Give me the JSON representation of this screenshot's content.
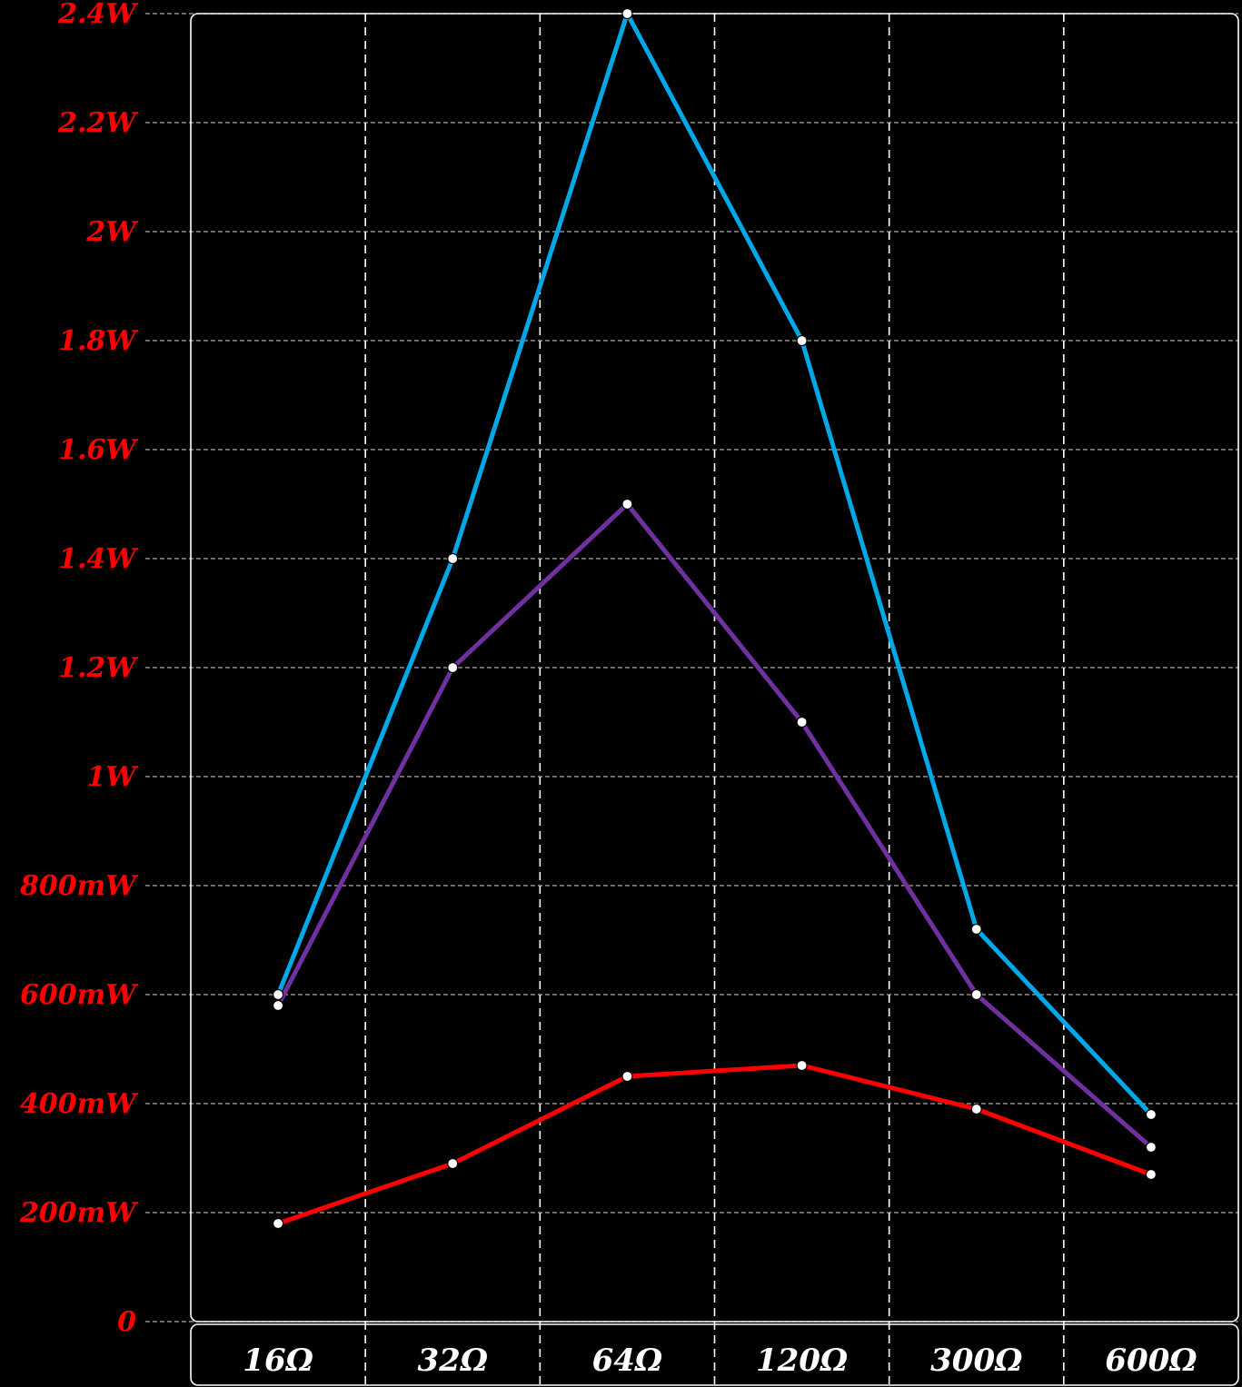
{
  "chart_data": {
    "type": "line",
    "categories": [
      "16Ω",
      "32Ω",
      "64Ω",
      "120Ω",
      "300Ω",
      "600Ω"
    ],
    "y_tick_labels": [
      "0",
      "200mW",
      "400mW",
      "600mW",
      "800mW",
      "1W",
      "1.2W",
      "1.4W",
      "1.6W",
      "1.8W",
      "2W",
      "2.2W",
      "2.4W"
    ],
    "ylim": [
      0,
      2.4
    ],
    "y_unit": "W",
    "grid": true,
    "series": [
      {
        "color": "#00a8e8",
        "values": [
          0.6,
          1.4,
          2.4,
          1.8,
          0.72,
          0.38
        ]
      },
      {
        "color": "#7030a0",
        "values": [
          0.58,
          1.2,
          1.5,
          1.1,
          0.6,
          0.32
        ]
      },
      {
        "color": "#ff0000",
        "values": [
          0.18,
          0.29,
          0.45,
          0.47,
          0.39,
          0.27
        ]
      }
    ],
    "colors": {
      "background": "#000000",
      "y_tick_text": "#ff0000",
      "x_tick_text": "#ffffff",
      "grid": "#aaaaaa",
      "frame": "#ffffff",
      "marker_fill": "#ffffff",
      "marker_stroke": "#000000"
    }
  }
}
